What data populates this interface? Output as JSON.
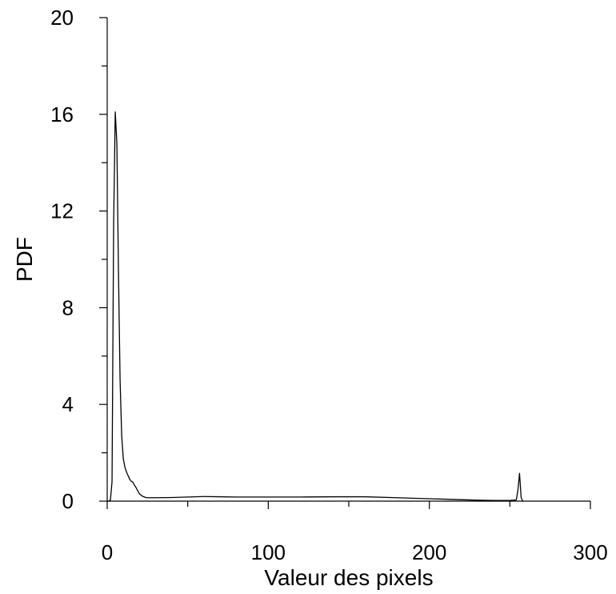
{
  "chart_data": {
    "type": "line",
    "title": "",
    "xlabel": "Valeur des pixels",
    "ylabel": "PDF",
    "xlim": [
      0,
      300
    ],
    "ylim": [
      0,
      20
    ],
    "x_ticks": [
      0,
      100,
      200,
      300
    ],
    "x_tick_labels": [
      "0",
      "100",
      "200",
      "300"
    ],
    "x_minor_ticks": [
      50,
      150,
      250
    ],
    "y_ticks": [
      0,
      4,
      8,
      12,
      16,
      20
    ],
    "y_tick_labels": [
      "0",
      "4",
      "8",
      "12",
      "16",
      "20"
    ],
    "y_minor_ticks": [
      2,
      6,
      10,
      14,
      18
    ],
    "grid": false,
    "line_color": "#000000",
    "series": [
      {
        "x": [
          0,
          1,
          2,
          3,
          4,
          5,
          6,
          7,
          8,
          9,
          10,
          11,
          12,
          13,
          14,
          15,
          16,
          17,
          18,
          19,
          20,
          22,
          24,
          26,
          30,
          40,
          50,
          60,
          70,
          80,
          100,
          120,
          140,
          160,
          180,
          200,
          210,
          220,
          230,
          240,
          250,
          254,
          255,
          256,
          257,
          258
        ],
        "y": [
          0,
          0,
          0.05,
          0.8,
          11.5,
          16.1,
          14.8,
          9.5,
          5.0,
          2.7,
          1.75,
          1.4,
          1.2,
          1.05,
          0.9,
          0.82,
          0.78,
          0.65,
          0.55,
          0.42,
          0.3,
          0.2,
          0.15,
          0.14,
          0.14,
          0.15,
          0.17,
          0.19,
          0.18,
          0.17,
          0.17,
          0.17,
          0.18,
          0.18,
          0.14,
          0.1,
          0.08,
          0.06,
          0.04,
          0.03,
          0.03,
          0.05,
          0.45,
          1.15,
          0.15,
          0
        ]
      }
    ]
  }
}
